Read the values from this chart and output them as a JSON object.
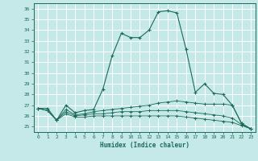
{
  "xlabel": "Humidex (Indice chaleur)",
  "bg_color": "#c5e8e8",
  "grid_color": "#ffffff",
  "line_color": "#1a6b5a",
  "xlim": [
    -0.5,
    23.5
  ],
  "ylim": [
    24.5,
    36.5
  ],
  "xticks": [
    0,
    1,
    2,
    3,
    4,
    5,
    6,
    7,
    8,
    9,
    10,
    11,
    12,
    13,
    14,
    15,
    16,
    17,
    18,
    19,
    20,
    21,
    22,
    23
  ],
  "yticks": [
    25,
    26,
    27,
    28,
    29,
    30,
    31,
    32,
    33,
    34,
    35,
    36
  ],
  "series": [
    [
      26.7,
      26.7,
      25.6,
      27.0,
      26.3,
      26.5,
      26.6,
      28.5,
      31.6,
      33.7,
      33.3,
      33.3,
      34.0,
      35.7,
      35.8,
      35.6,
      32.2,
      28.2,
      29.0,
      28.1,
      28.0,
      27.0,
      25.3,
      24.8
    ],
    [
      26.7,
      26.5,
      25.6,
      26.6,
      26.1,
      26.2,
      26.4,
      26.5,
      26.6,
      26.7,
      26.8,
      26.9,
      27.0,
      27.2,
      27.3,
      27.4,
      27.3,
      27.2,
      27.1,
      27.1,
      27.1,
      27.0,
      25.3,
      24.8
    ],
    [
      26.7,
      26.5,
      25.6,
      26.4,
      26.0,
      26.1,
      26.2,
      26.2,
      26.3,
      26.4,
      26.4,
      26.4,
      26.5,
      26.5,
      26.5,
      26.5,
      26.4,
      26.3,
      26.2,
      26.1,
      26.0,
      25.8,
      25.2,
      24.8
    ],
    [
      26.7,
      26.5,
      25.6,
      26.2,
      25.9,
      25.9,
      26.0,
      26.0,
      26.0,
      26.0,
      26.0,
      26.0,
      26.0,
      26.0,
      26.0,
      26.0,
      25.9,
      25.8,
      25.7,
      25.6,
      25.5,
      25.4,
      25.1,
      24.8
    ]
  ]
}
